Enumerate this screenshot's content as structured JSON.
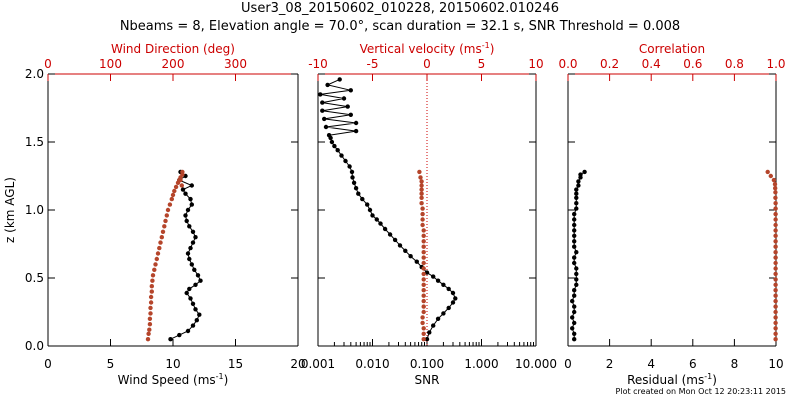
{
  "figure": {
    "title_line1": "User3_08_20150602_010228, 20150602.010246",
    "title_line2": "Nbeams = 8, Elevation angle = 70.0°, scan duration = 32.1 s, SNR Threshold = 0.008",
    "footnote": "Plot created on Mon Oct 12 20:23:11 2015",
    "colors": {
      "axis": "#000000",
      "secondary_axis": "#cc0000",
      "secondary_series": "#b5452b",
      "primary_series": "#000000"
    }
  },
  "chart_data": [
    {
      "type": "scatter",
      "ylabel": "z (km AGL)",
      "ylim": [
        0,
        2.0
      ],
      "yticks": [
        "0.0",
        "0.5",
        "1.0",
        "1.5",
        "2.0"
      ],
      "bottom_axis": {
        "label": "Wind Speed (ms",
        "superscript": "-1",
        "suffix": ")",
        "range": [
          0,
          20
        ],
        "scale": "linear",
        "ticks": [
          "0",
          "5",
          "10",
          "15",
          "20"
        ]
      },
      "top_axis": {
        "label": "Wind Direction (deg)",
        "range": [
          0,
          400
        ],
        "scale": "linear",
        "ticks": [
          "0",
          "100",
          "200",
          "300"
        ]
      },
      "series": [
        {
          "axis": "bottom",
          "color": "#000000",
          "connected": true,
          "x": [
            9.8,
            10.5,
            11.2,
            11.6,
            11.9,
            12.1,
            11.8,
            11.6,
            11.4,
            11.1,
            11.3,
            11.8,
            12.2,
            12.0,
            11.7,
            11.5,
            11.3,
            11.2,
            11.4,
            11.6,
            11.8,
            11.6,
            11.3,
            11.1,
            11.0,
            11.2,
            11.5,
            11.4,
            11.0,
            10.8,
            11.5,
            10.5,
            11.0,
            10.6
          ],
          "y": [
            0.05,
            0.08,
            0.11,
            0.15,
            0.19,
            0.23,
            0.27,
            0.31,
            0.35,
            0.39,
            0.42,
            0.45,
            0.48,
            0.52,
            0.56,
            0.6,
            0.64,
            0.68,
            0.72,
            0.76,
            0.8,
            0.84,
            0.88,
            0.92,
            0.96,
            1.0,
            1.04,
            1.08,
            1.12,
            1.15,
            1.18,
            1.22,
            1.25,
            1.28
          ]
        },
        {
          "axis": "top",
          "color": "#b5452b",
          "connected": false,
          "x": [
            160,
            161,
            162,
            163,
            163,
            164,
            164,
            165,
            165,
            166,
            166,
            167,
            168,
            170,
            172,
            174,
            176,
            178,
            180,
            182,
            184,
            186,
            188,
            190,
            192,
            195,
            198,
            200,
            202,
            205,
            208,
            210,
            212,
            215,
            215,
            212,
            214
          ],
          "y": [
            0.05,
            0.09,
            0.12,
            0.16,
            0.2,
            0.24,
            0.28,
            0.32,
            0.36,
            0.4,
            0.44,
            0.48,
            0.52,
            0.56,
            0.6,
            0.64,
            0.68,
            0.72,
            0.76,
            0.8,
            0.84,
            0.88,
            0.92,
            0.96,
            1.0,
            1.04,
            1.08,
            1.11,
            1.14,
            1.17,
            1.2,
            1.22,
            1.24,
            1.26,
            1.28,
            1.22,
            1.18
          ]
        }
      ]
    },
    {
      "type": "scatter",
      "ylim": [
        0,
        2.0
      ],
      "bottom_axis": {
        "label": "SNR",
        "range": [
          0.001,
          10
        ],
        "scale": "log",
        "ticks": [
          "0.001",
          "0.010",
          "0.100",
          "1.000",
          "10.000"
        ],
        "tick_values": [
          0.001,
          0.01,
          0.1,
          1,
          10
        ]
      },
      "top_axis": {
        "label": "Vertical velocity (ms",
        "superscript": "-1",
        "suffix": ")",
        "range": [
          -10,
          10
        ],
        "scale": "linear",
        "ticks": [
          "-10",
          "-5",
          "0",
          "5",
          "10"
        ],
        "reference_line": 0
      },
      "series": [
        {
          "axis": "bottom",
          "color": "#000000",
          "connected": true,
          "x": [
            0.1,
            0.11,
            0.13,
            0.16,
            0.2,
            0.25,
            0.3,
            0.33,
            0.3,
            0.25,
            0.2,
            0.16,
            0.13,
            0.1,
            0.08,
            0.065,
            0.05,
            0.04,
            0.032,
            0.026,
            0.021,
            0.017,
            0.014,
            0.012,
            0.01,
            0.009,
            0.008,
            0.0065,
            0.0055,
            0.005,
            0.0046,
            0.0043,
            0.0042,
            0.0038,
            0.0032,
            0.0027,
            0.0023,
            0.002,
            0.0018,
            0.0017,
            0.0016,
            0.005,
            0.0014,
            0.005,
            0.0013,
            0.004,
            0.0012,
            0.0035,
            0.0012,
            0.003,
            0.0011,
            0.004,
            0.0015,
            0.0025
          ],
          "y": [
            0.05,
            0.1,
            0.15,
            0.2,
            0.24,
            0.28,
            0.32,
            0.35,
            0.39,
            0.42,
            0.45,
            0.48,
            0.51,
            0.54,
            0.58,
            0.62,
            0.66,
            0.7,
            0.74,
            0.78,
            0.82,
            0.86,
            0.9,
            0.93,
            0.96,
            1.0,
            1.04,
            1.08,
            1.12,
            1.16,
            1.2,
            1.24,
            1.28,
            1.32,
            1.36,
            1.4,
            1.44,
            1.47,
            1.5,
            1.53,
            1.55,
            1.58,
            1.61,
            1.64,
            1.67,
            1.7,
            1.73,
            1.76,
            1.79,
            1.82,
            1.85,
            1.88,
            1.92,
            1.96
          ]
        },
        {
          "axis": "top",
          "color": "#b5452b",
          "connected": false,
          "x": [
            -0.3,
            -0.3,
            -0.3,
            -0.4,
            -0.4,
            -0.3,
            -0.3,
            -0.3,
            -0.3,
            -0.3,
            -0.3,
            -0.3,
            -0.3,
            -0.3,
            -0.3,
            -0.3,
            -0.3,
            -0.3,
            -0.3,
            -0.3,
            -0.3,
            -0.4,
            -0.4,
            -0.4,
            -0.4,
            -0.5,
            -0.5,
            -0.5,
            -0.5,
            -0.5,
            -0.5,
            -0.6,
            -0.7
          ],
          "y": [
            0.05,
            0.09,
            0.13,
            0.17,
            0.21,
            0.25,
            0.29,
            0.33,
            0.37,
            0.41,
            0.45,
            0.49,
            0.53,
            0.57,
            0.61,
            0.65,
            0.69,
            0.73,
            0.77,
            0.81,
            0.85,
            0.89,
            0.93,
            0.97,
            1.01,
            1.05,
            1.09,
            1.12,
            1.15,
            1.18,
            1.21,
            1.24,
            1.28
          ]
        }
      ]
    },
    {
      "type": "scatter",
      "ylim": [
        0,
        2.0
      ],
      "bottom_axis": {
        "label": "Residual (ms",
        "superscript": "-1",
        "suffix": ")",
        "range": [
          0,
          10
        ],
        "scale": "linear",
        "ticks": [
          "0",
          "2",
          "4",
          "6",
          "8",
          "10"
        ]
      },
      "top_axis": {
        "label": "Correlation",
        "range": [
          0,
          1
        ],
        "scale": "linear",
        "ticks": [
          "0.0",
          "0.2",
          "0.4",
          "0.6",
          "0.8",
          "1.0"
        ]
      },
      "series": [
        {
          "axis": "bottom",
          "color": "#000000",
          "connected": true,
          "x": [
            0.3,
            0.3,
            0.2,
            0.3,
            0.2,
            0.3,
            0.3,
            0.2,
            0.3,
            0.3,
            0.4,
            0.4,
            0.4,
            0.4,
            0.3,
            0.3,
            0.4,
            0.3,
            0.3,
            0.3,
            0.3,
            0.3,
            0.3,
            0.3,
            0.4,
            0.4,
            0.4,
            0.4,
            0.4,
            0.5,
            0.5,
            0.6,
            0.6,
            0.8
          ],
          "y": [
            0.05,
            0.09,
            0.13,
            0.17,
            0.21,
            0.25,
            0.29,
            0.33,
            0.37,
            0.41,
            0.45,
            0.49,
            0.53,
            0.57,
            0.61,
            0.65,
            0.69,
            0.73,
            0.77,
            0.81,
            0.85,
            0.89,
            0.93,
            0.97,
            1.01,
            1.05,
            1.09,
            1.12,
            1.15,
            1.18,
            1.21,
            1.24,
            1.26,
            1.28
          ]
        },
        {
          "axis": "top",
          "color": "#b5452b",
          "connected": false,
          "x": [
            0.998,
            0.998,
            0.998,
            0.998,
            0.998,
            0.998,
            0.998,
            0.998,
            0.998,
            0.998,
            0.998,
            0.998,
            0.998,
            0.998,
            0.998,
            0.998,
            0.998,
            0.998,
            0.998,
            0.998,
            0.998,
            0.998,
            0.998,
            0.998,
            0.998,
            0.998,
            0.997,
            0.997,
            0.996,
            0.995,
            0.99,
            0.975,
            0.96
          ],
          "y": [
            0.05,
            0.09,
            0.13,
            0.17,
            0.21,
            0.25,
            0.29,
            0.33,
            0.37,
            0.41,
            0.45,
            0.49,
            0.53,
            0.57,
            0.61,
            0.65,
            0.69,
            0.73,
            0.77,
            0.81,
            0.85,
            0.89,
            0.93,
            0.97,
            1.01,
            1.05,
            1.09,
            1.13,
            1.16,
            1.19,
            1.22,
            1.25,
            1.28
          ]
        }
      ]
    }
  ]
}
